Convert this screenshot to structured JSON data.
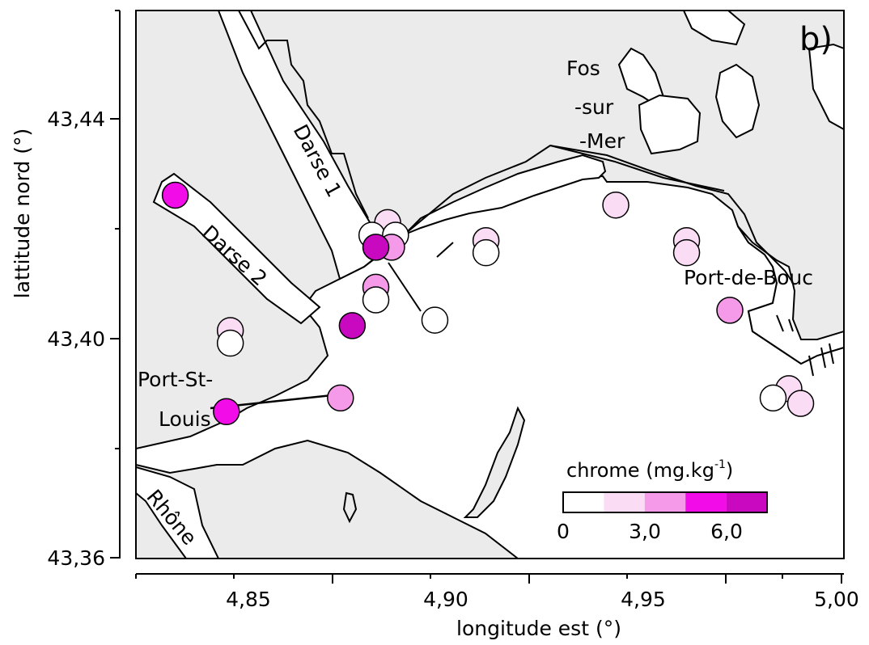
{
  "panel_label": "b)",
  "x_axis": {
    "title": "longitude est (°)",
    "ticks": [
      "4,85",
      "4,90",
      "4,95",
      "5,00"
    ]
  },
  "y_axis": {
    "title": "lattitude nord (°)",
    "ticks": [
      "43,44",
      "43,40",
      "43,36"
    ]
  },
  "place_labels": {
    "fos_line1": "Fos",
    "fos_line2": "-sur",
    "fos_line3": "-Mer",
    "darse1": "Darse 1",
    "darse2": "Darse 2",
    "port_de_bouc": "Port-de-Bouc",
    "port_st_louis_line1": "Port-St-",
    "port_st_louis_line2": "Louis",
    "rhone": "Rhône"
  },
  "legend": {
    "title": "chrome (mg.kg",
    "title_sup": "-1",
    "title_end": ")",
    "tick_labels": [
      "0",
      "3,0",
      "6,0"
    ],
    "class_colors": [
      "#ffffff",
      "#fbdcf5",
      "#f59ae8",
      "#f20ce8",
      "#c809c0"
    ]
  },
  "colors": {
    "land": "#ebebeb",
    "water": "#ffffff",
    "outline": "#000000"
  },
  "chart_data": {
    "type": "scatter",
    "xlim": [
      4.82,
      5.0
    ],
    "ylim": [
      43.36,
      43.46
    ],
    "xlabel": "longitude est (°)",
    "ylabel": "lattitude nord (°)",
    "title": "b)",
    "legend_position": "bottom-right",
    "series": [
      {
        "name": "chrome (mg.kg-1)",
        "points": [
          {
            "lon": 4.83,
            "lat": 43.4263,
            "class": 3
          },
          {
            "lon": 4.844,
            "lat": 43.4016,
            "class": 1
          },
          {
            "lon": 4.844,
            "lat": 43.3993,
            "class": 0
          },
          {
            "lon": 4.843,
            "lat": 43.3868,
            "class": 3
          },
          {
            "lon": 4.872,
            "lat": 43.3893,
            "class": 2
          },
          {
            "lon": 4.875,
            "lat": 43.4025,
            "class": 4
          },
          {
            "lon": 4.881,
            "lat": 43.4095,
            "class": 2
          },
          {
            "lon": 4.881,
            "lat": 43.4072,
            "class": 0
          },
          {
            "lon": 4.884,
            "lat": 43.4213,
            "class": 1
          },
          {
            "lon": 4.88,
            "lat": 43.419,
            "class": 0
          },
          {
            "lon": 4.886,
            "lat": 43.419,
            "class": 0
          },
          {
            "lon": 4.885,
            "lat": 43.4168,
            "class": 2
          },
          {
            "lon": 4.881,
            "lat": 43.4168,
            "class": 4
          },
          {
            "lon": 4.896,
            "lat": 43.4035,
            "class": 0
          },
          {
            "lon": 4.909,
            "lat": 43.418,
            "class": 1
          },
          {
            "lon": 4.909,
            "lat": 43.4158,
            "class": 0
          },
          {
            "lon": 4.942,
            "lat": 43.4245,
            "class": 1
          },
          {
            "lon": 4.96,
            "lat": 43.418,
            "class": 1
          },
          {
            "lon": 4.96,
            "lat": 43.4158,
            "class": 1
          },
          {
            "lon": 4.971,
            "lat": 43.4053,
            "class": 2
          },
          {
            "lon": 4.986,
            "lat": 43.391,
            "class": 1
          },
          {
            "lon": 4.989,
            "lat": 43.3883,
            "class": 1
          },
          {
            "lon": 4.982,
            "lat": 43.3893,
            "class": 0
          }
        ]
      }
    ]
  }
}
